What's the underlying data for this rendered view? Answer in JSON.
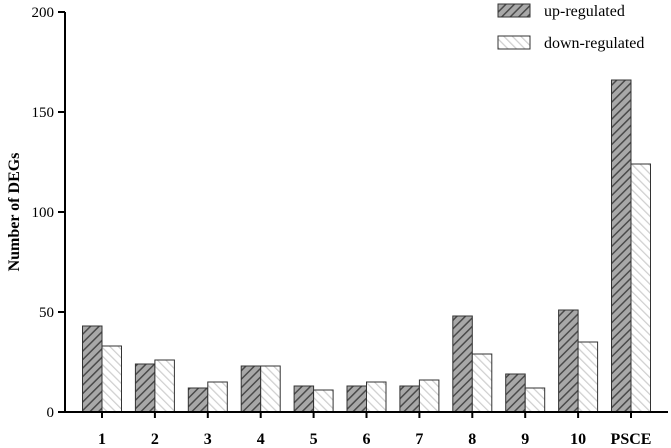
{
  "chart_data": {
    "type": "bar",
    "categories": [
      "1",
      "2",
      "3",
      "4",
      "5",
      "6",
      "7",
      "8",
      "9",
      "10",
      "PSCE"
    ],
    "series": [
      {
        "name": "up-regulated",
        "values": [
          43,
          24,
          12,
          23,
          13,
          13,
          13,
          48,
          19,
          51,
          166
        ],
        "color": "#8c8c8c",
        "pattern": "hatched"
      },
      {
        "name": "down-regulated",
        "values": [
          33,
          26,
          15,
          23,
          11,
          15,
          16,
          29,
          12,
          35,
          124
        ],
        "color": "#e6e6e6",
        "pattern": "light-hatched"
      }
    ],
    "ylabel": "Number of DEGs",
    "xlabel": "",
    "ylim": [
      0,
      200
    ],
    "yticks": [
      0,
      50,
      100,
      150,
      200
    ],
    "grid": false,
    "legend": "top-right"
  }
}
